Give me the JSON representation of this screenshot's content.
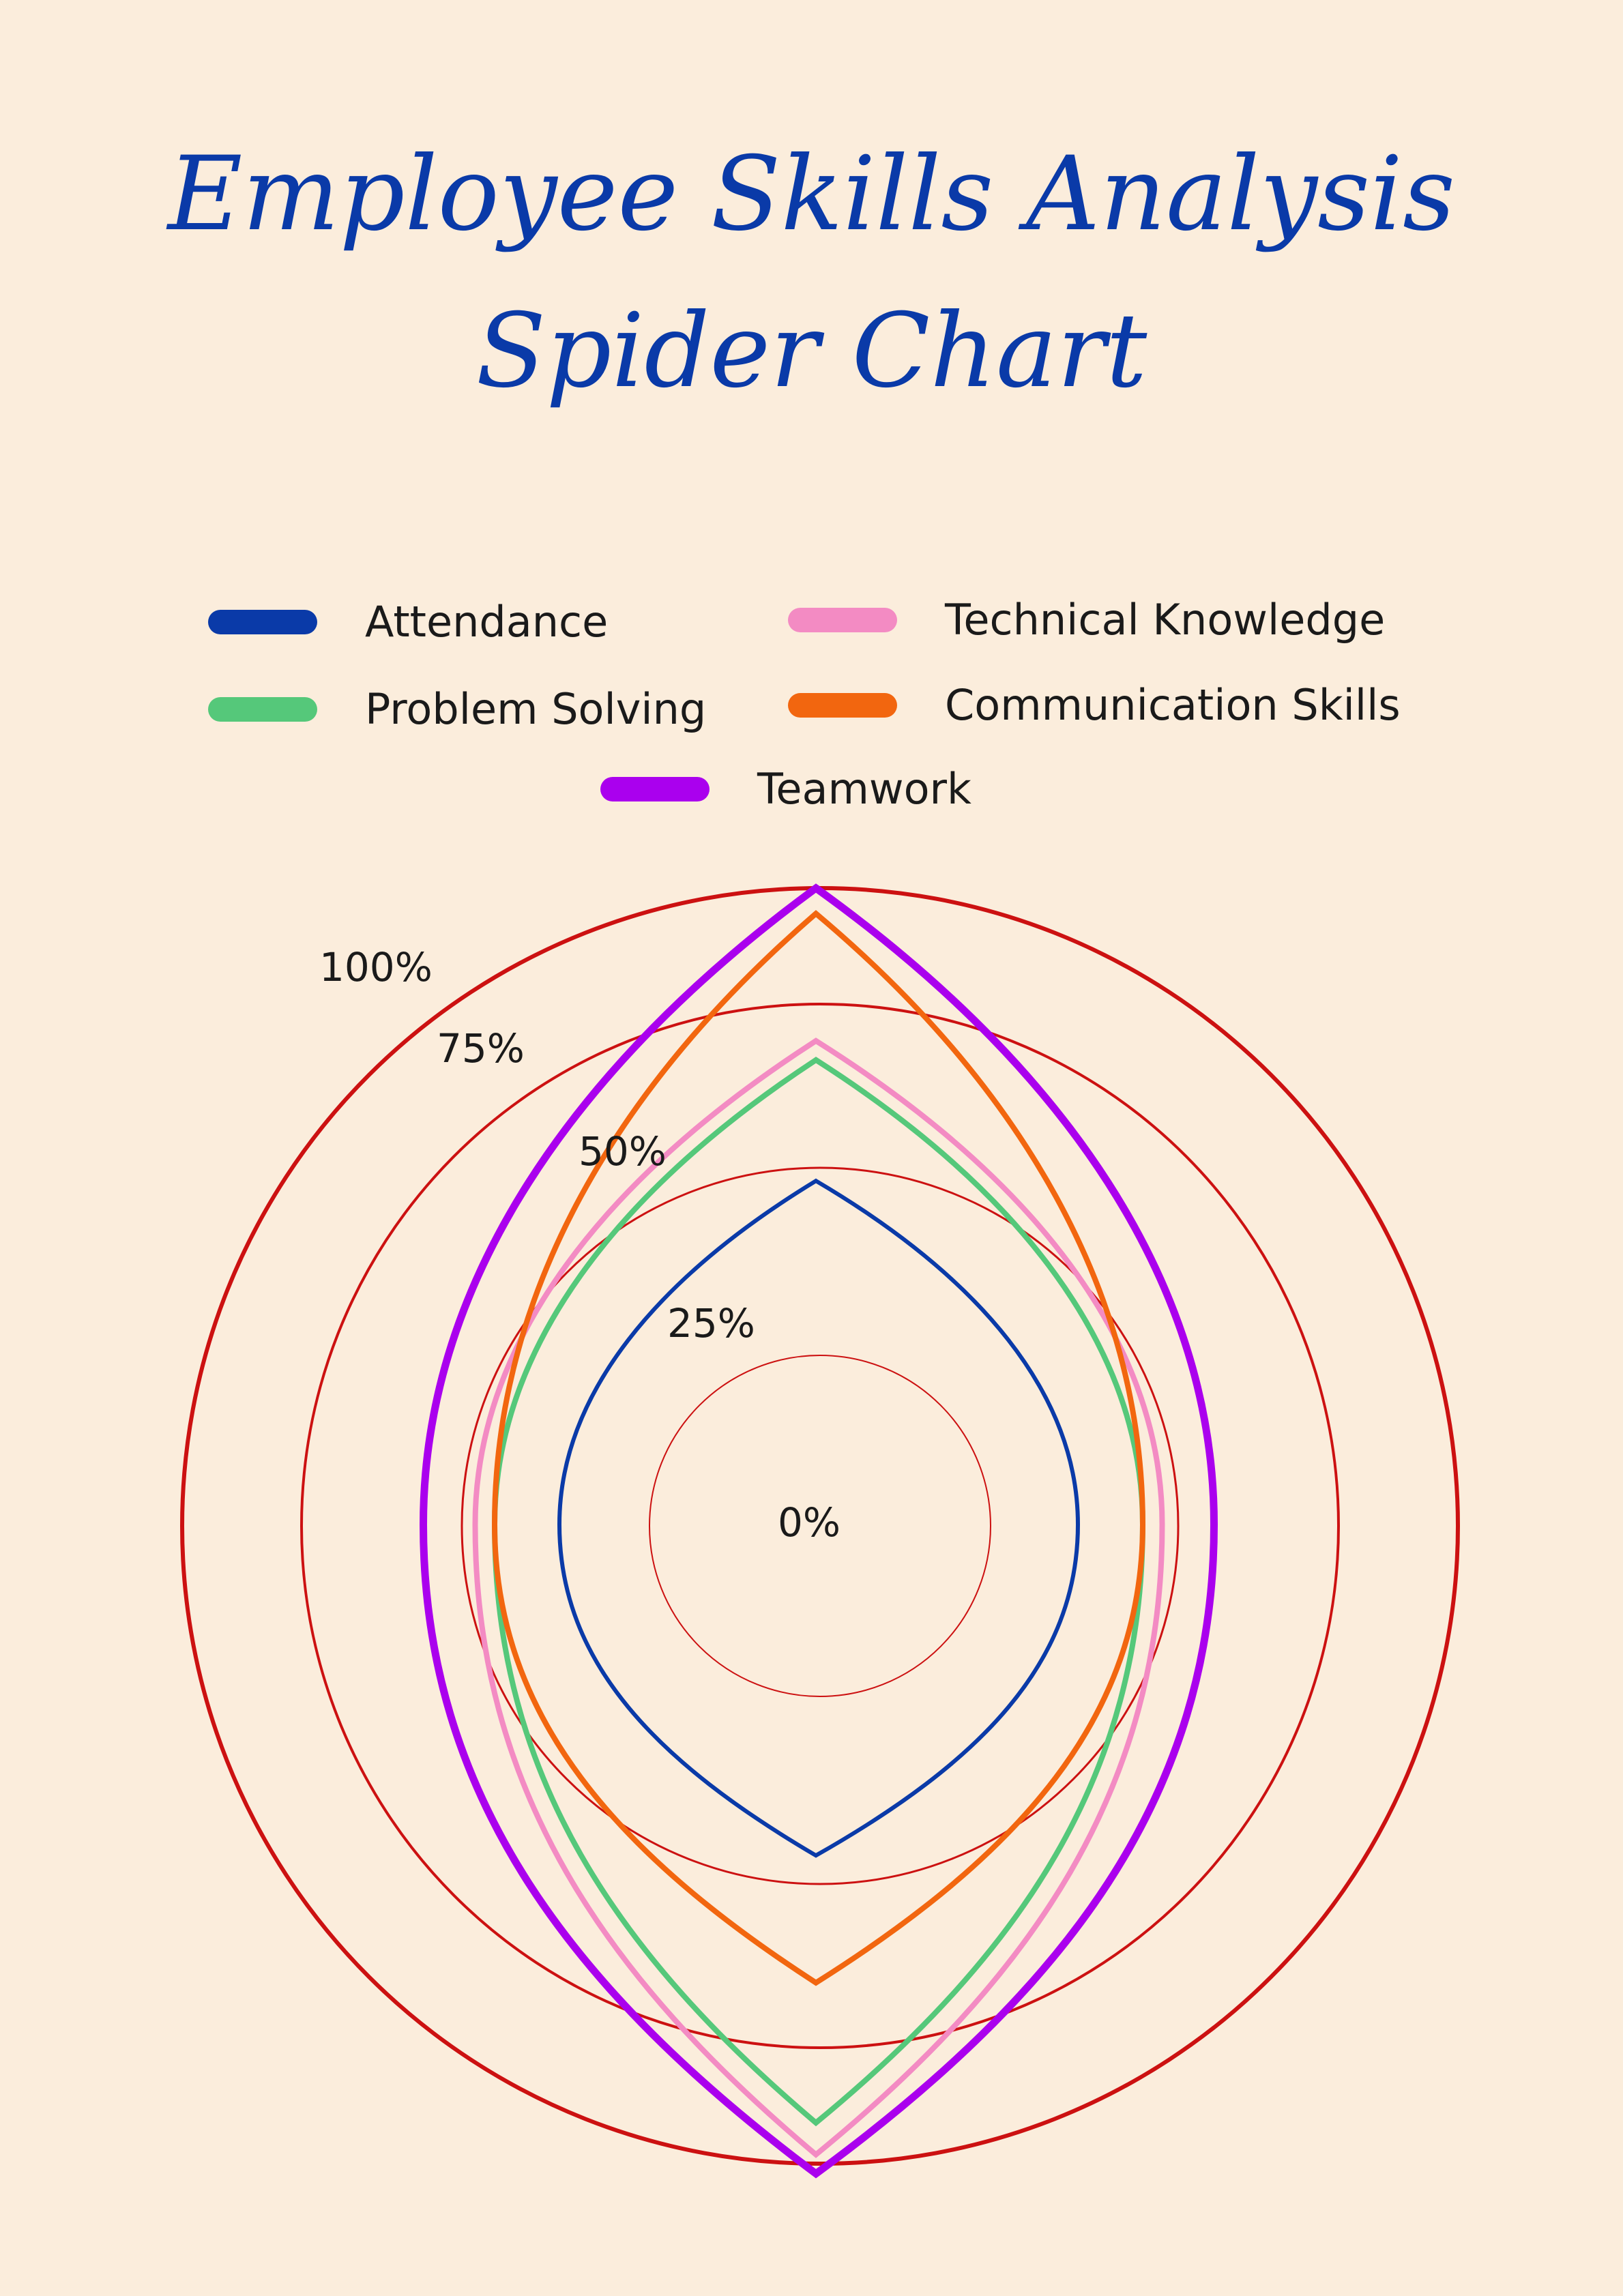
{
  "title": {
    "line1": "Employee Skills Analysis",
    "line2": "Spider Chart"
  },
  "colors": {
    "background": "#FBEDDC",
    "title": "#0A3AA8",
    "rings": "#CC1111"
  },
  "chart_data": {
    "type": "radar",
    "title": "Employee Skills Analysis Spider Chart",
    "scale_labels": [
      "0%",
      "25%",
      "50%",
      "75%",
      "100%"
    ],
    "series": [
      {
        "name": "Attendance",
        "color": "#0A3AA8",
        "top": 54,
        "side": 40,
        "bottom": 52
      },
      {
        "name": "Technical Knowledge",
        "color": "#F38BC3",
        "top": 76,
        "side": 53,
        "bottom": 99
      },
      {
        "name": "Problem Solving",
        "color": "#55C87A",
        "top": 73,
        "side": 50,
        "bottom": 94
      },
      {
        "name": "Communication Skills",
        "color": "#F2660F",
        "top": 96,
        "side": 50,
        "bottom": 72
      },
      {
        "name": "Teamwork",
        "color": "#AA00EE",
        "top": 100,
        "side": 61,
        "bottom": 102
      }
    ]
  },
  "legend": [
    {
      "label": "Attendance",
      "color": "#0A3AA8"
    },
    {
      "label": "Technical Knowledge",
      "color": "#F38BC3"
    },
    {
      "label": "Problem Solving",
      "color": "#55C87A"
    },
    {
      "label": "Communication Skills",
      "color": "#F2660F"
    },
    {
      "label": "Teamwork",
      "color": "#AA00EE"
    }
  ]
}
